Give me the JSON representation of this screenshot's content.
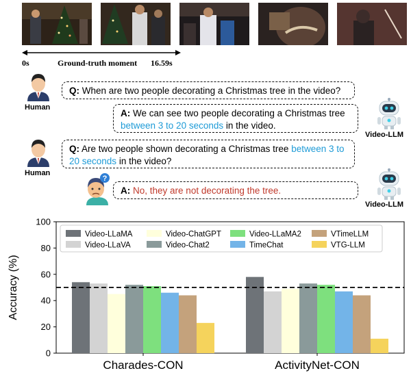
{
  "timeline": {
    "start": "0s",
    "label": "Ground-truth moment",
    "end": "16.59s"
  },
  "dialog": {
    "human_label": "Human",
    "llm_label": "Video-LLM",
    "q1_prefix": "Q:",
    "q1_text": "When are two people decorating a Christmas tree in the video?",
    "a1_prefix": "A:",
    "a1_text_1": "We can see two people decorating a Christmas tree",
    "a1_highlight": "between 3 to 20 seconds",
    "a1_text_2": "in the video.",
    "q2_prefix": "Q:",
    "q2_text_1": "Are two people shown decorating a Christmas tree",
    "q2_highlight": "between 3 to 20 seconds",
    "q2_text_2": "in the video?",
    "a2_prefix": "A:",
    "a2_text": "No, they are not decorating the tree.",
    "confused_mark": "?"
  },
  "chart_data": {
    "type": "bar",
    "ylabel": "Accuracy (%)",
    "xlabel": "",
    "ylim": [
      0,
      100
    ],
    "yticks": [
      0,
      20,
      40,
      60,
      80,
      100
    ],
    "categories": [
      "Charades-CON",
      "ActivityNet-CON"
    ],
    "reference_line": 50,
    "grid": false,
    "legend_position": "top",
    "series": [
      {
        "name": "Video-LLaMA",
        "color": "#6e7378",
        "values": [
          54,
          58
        ]
      },
      {
        "name": "Video-LLaVA",
        "color": "#d3d3d3",
        "values": [
          53,
          47
        ]
      },
      {
        "name": "Video-ChatGPT",
        "color": "#ffffdc",
        "values": [
          45,
          49
        ]
      },
      {
        "name": "Video-Chat2",
        "color": "#8a9a9a",
        "values": [
          52,
          53
        ]
      },
      {
        "name": "Video-LLaMA2",
        "color": "#7ee07e",
        "values": [
          51,
          52
        ]
      },
      {
        "name": "TimeChat",
        "color": "#73b4e8",
        "values": [
          46,
          47
        ]
      },
      {
        "name": "VTimeLLM",
        "color": "#c4a27c",
        "values": [
          44,
          44
        ]
      },
      {
        "name": "VTG-LLM",
        "color": "#f5d35c",
        "values": [
          23,
          11
        ]
      }
    ]
  }
}
